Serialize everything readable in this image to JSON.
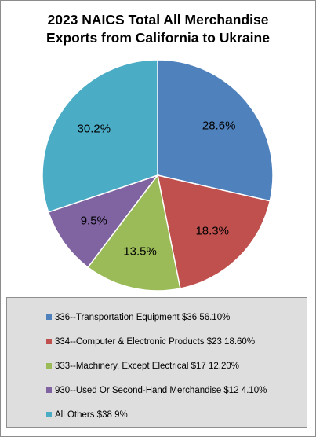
{
  "chart_data": {
    "type": "pie",
    "title_lines": [
      "2023 NAICS Total All Merchandise",
      "Exports from California to Ukraine"
    ],
    "slices": [
      {
        "label": "28.6%",
        "value": 28.6,
        "color": "#4f81bd"
      },
      {
        "label": "18.3%",
        "value": 18.3,
        "color": "#c0504d"
      },
      {
        "label": "13.5%",
        "value": 13.5,
        "color": "#9bbb59"
      },
      {
        "label": "9.5%",
        "value": 9.5,
        "color": "#8064a2"
      },
      {
        "label": "30.2%",
        "value": 30.2,
        "color": "#4bacc6"
      }
    ],
    "legend": {
      "placement": "bottom",
      "items": [
        {
          "text": "336--Transportation Equipment $36 56.10%",
          "color": "#4f81bd"
        },
        {
          "text": "334--Computer & Electronic Products $23 18.60%",
          "color": "#c0504d"
        },
        {
          "text": "333--Machinery, Except Electrical $17 12.20%",
          "color": "#9bbb59"
        },
        {
          "text": "930--Used Or Second-Hand Merchandise $12 4.10%",
          "color": "#8064a2"
        },
        {
          "text": "All Others $38 9%",
          "color": "#4bacc6"
        }
      ]
    }
  }
}
